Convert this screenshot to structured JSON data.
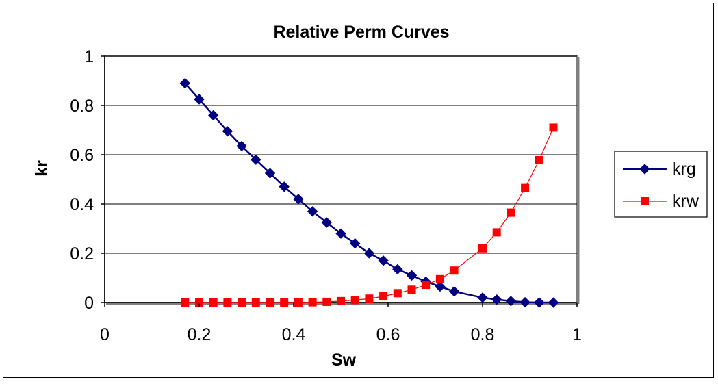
{
  "chart_data": {
    "type": "scatter",
    "title": "Relative Perm Curves",
    "xlabel": "Sw",
    "ylabel": "kr",
    "xlim": [
      0,
      1
    ],
    "ylim": [
      0,
      1
    ],
    "x_ticks": [
      "0",
      "0.2",
      "0.4",
      "0.6",
      "0.8",
      "1"
    ],
    "y_ticks": [
      "0",
      "0.2",
      "0.4",
      "0.6",
      "0.8",
      "1"
    ],
    "grid": "horizontal",
    "legend_position": "right",
    "series": [
      {
        "name": "krg",
        "color": "#000080",
        "marker": "diamond",
        "x": [
          0.17,
          0.2,
          0.23,
          0.26,
          0.29,
          0.32,
          0.35,
          0.38,
          0.41,
          0.44,
          0.47,
          0.5,
          0.53,
          0.56,
          0.59,
          0.62,
          0.65,
          0.68,
          0.71,
          0.74,
          0.8,
          0.83,
          0.86,
          0.89,
          0.92,
          0.95
        ],
        "y": [
          0.89,
          0.825,
          0.76,
          0.695,
          0.635,
          0.58,
          0.525,
          0.47,
          0.42,
          0.37,
          0.325,
          0.28,
          0.24,
          0.2,
          0.17,
          0.135,
          0.11,
          0.085,
          0.065,
          0.045,
          0.02,
          0.012,
          0.006,
          0.001,
          0.0,
          0.0
        ]
      },
      {
        "name": "krw",
        "color": "#ff0000",
        "marker": "square",
        "x": [
          0.17,
          0.2,
          0.23,
          0.26,
          0.29,
          0.32,
          0.35,
          0.38,
          0.41,
          0.44,
          0.47,
          0.5,
          0.53,
          0.56,
          0.59,
          0.62,
          0.65,
          0.68,
          0.71,
          0.74,
          0.8,
          0.83,
          0.86,
          0.89,
          0.92,
          0.95
        ],
        "y": [
          0.0,
          0.0,
          0.0,
          0.0,
          0.0,
          0.0,
          0.0,
          0.0,
          0.0,
          0.001,
          0.003,
          0.006,
          0.01,
          0.016,
          0.025,
          0.038,
          0.052,
          0.072,
          0.095,
          0.13,
          0.22,
          0.285,
          0.365,
          0.465,
          0.578,
          0.71
        ]
      }
    ]
  }
}
